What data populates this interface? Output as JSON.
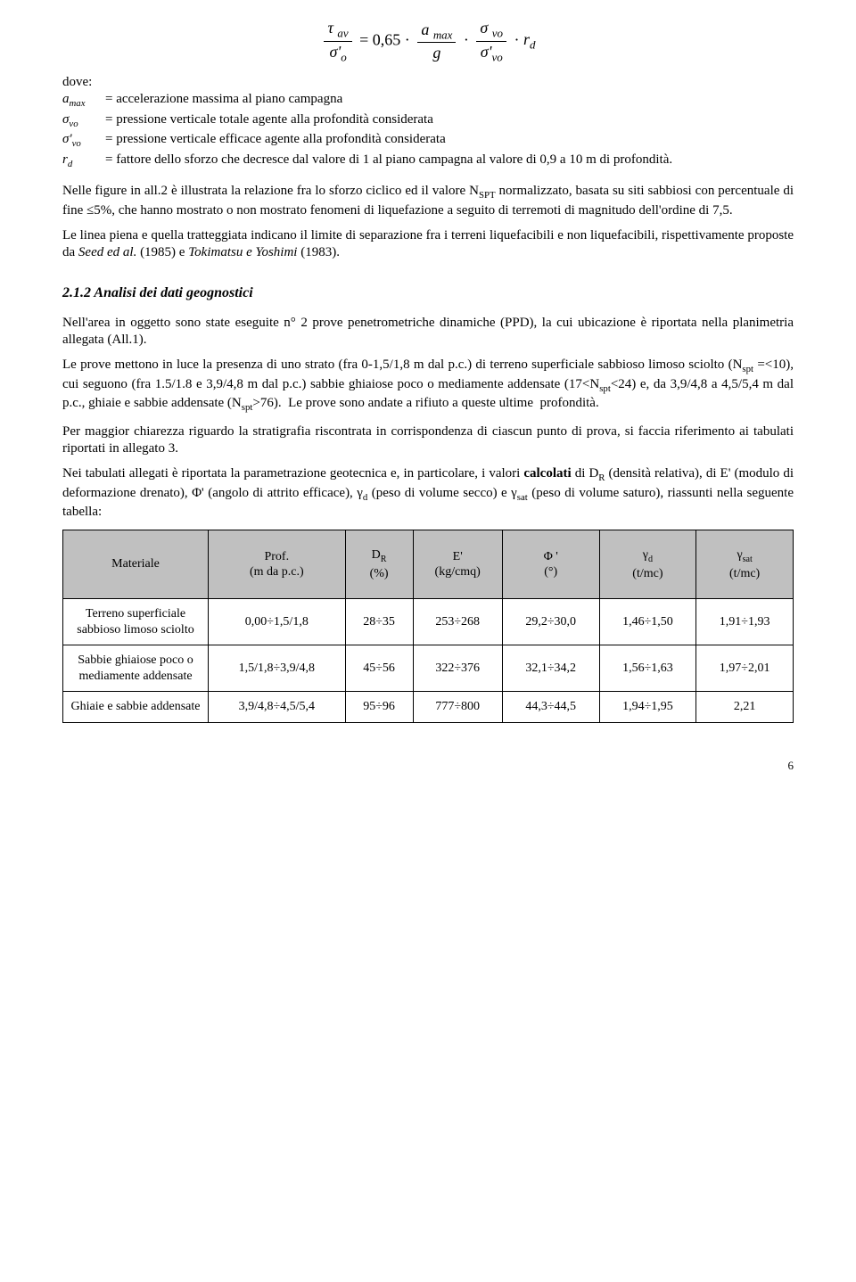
{
  "formula": {
    "eq_text": "τ_av / σ'_o = 0,65 · (a_max / g) · (σ_vo / σ'_vo) · r_d"
  },
  "dove_label": "dove:",
  "defs": [
    {
      "sym": "a_max",
      "txt": "= accelerazione massima al piano campagna"
    },
    {
      "sym": "σ_vo",
      "txt": "= pressione verticale totale agente alla profondità considerata"
    },
    {
      "sym": "σ'_vo",
      "txt": "= pressione verticale efficace agente alla profondità considerata"
    },
    {
      "sym": "r_d",
      "txt": "= fattore dello sforzo che decresce dal valore di 1 al piano campagna al valore di 0,9 a 10 m di profondità."
    }
  ],
  "para1": "Nelle figure in all.2 è illustrata la relazione fra lo sforzo ciclico ed il valore N_SPT normalizzato, basata su siti sabbiosi con percentuale di fine ≤5%, che hanno mostrato o non mostrato fenomeni di liquefazione a seguito di terremoti di magnitudo dell'ordine di 7,5.",
  "para2": "Le linea piena e quella tratteggiata indicano il limite di separazione fra i terreni liquefacibili e non liquefacibili, rispettivamente proposte da Seed ed al. (1985) e Tokimatsu e Yoshimi (1983).",
  "section_title": "2.1.2   Analisi dei dati geognostici",
  "para3": "Nell'area in oggetto sono state eseguite n° 2 prove penetrometriche dinamiche (PPD), la cui ubicazione è riportata nella planimetria allegata (All.1).",
  "para4": "Le prove mettono in luce la presenza di uno strato (fra 0-1,5/1,8 m dal p.c.) di terreno superficiale sabbioso limoso sciolto (N_spt =<10), cui seguono (fra 1.5/1.8 e 3,9/4,8 m dal p.c.) sabbie ghiaiose poco o mediamente addensate (17<N_spt<24) e, da 3,9/4,8 a 4,5/5,4 m dal p.c., ghiaie e sabbie addensate (N_spt>76).  Le prove sono andate a rifiuto a queste ultime  profondità.",
  "para5": "Per maggior chiarezza riguardo la stratigrafia riscontrata in corrispondenza di ciascun punto di prova, si faccia riferimento ai tabulati riportati in allegato 3.",
  "para6": "Nei tabulati allegati è riportata la parametrazione geotecnica e, in particolare, i valori calcolati di D_R (densità relativa), di E' (modulo di deformazione drenato), Φ' (angolo di attrito efficace), γ_d (peso di volume secco) e γ_sat (peso di volume saturo), riassunti nella seguente tabella:",
  "table": {
    "columns": [
      {
        "label": "Materiale",
        "sub": ""
      },
      {
        "label": "Prof.",
        "sub": "(m da p.c.)"
      },
      {
        "label": "D_R",
        "sub": "(%)"
      },
      {
        "label": "E'",
        "sub": "(kg/cmq)"
      },
      {
        "label": "Φ '",
        "sub": "(°)"
      },
      {
        "label": "γ_d",
        "sub": "(t/mc)"
      },
      {
        "label": "γ_sat",
        "sub": "(t/mc)"
      }
    ],
    "rows": [
      [
        "Terreno superficiale sabbioso limoso sciolto",
        "0,00÷1,5/1,8",
        "28÷35",
        "253÷268",
        "29,2÷30,0",
        "1,46÷1,50",
        "1,91÷1,93"
      ],
      [
        "Sabbie ghiaiose poco o mediamente addensate",
        "1,5/1,8÷3,9/4,8",
        "45÷56",
        "322÷376",
        "32,1÷34,2",
        "1,56÷1,63",
        "1,97÷2,01"
      ],
      [
        "Ghiaie e sabbie addensate",
        "3,9/4,8÷4,5/5,4",
        "95÷96",
        "777÷800",
        "44,3÷44,5",
        "1,94÷1,95",
        "2,21"
      ]
    ]
  },
  "page_number": "6"
}
